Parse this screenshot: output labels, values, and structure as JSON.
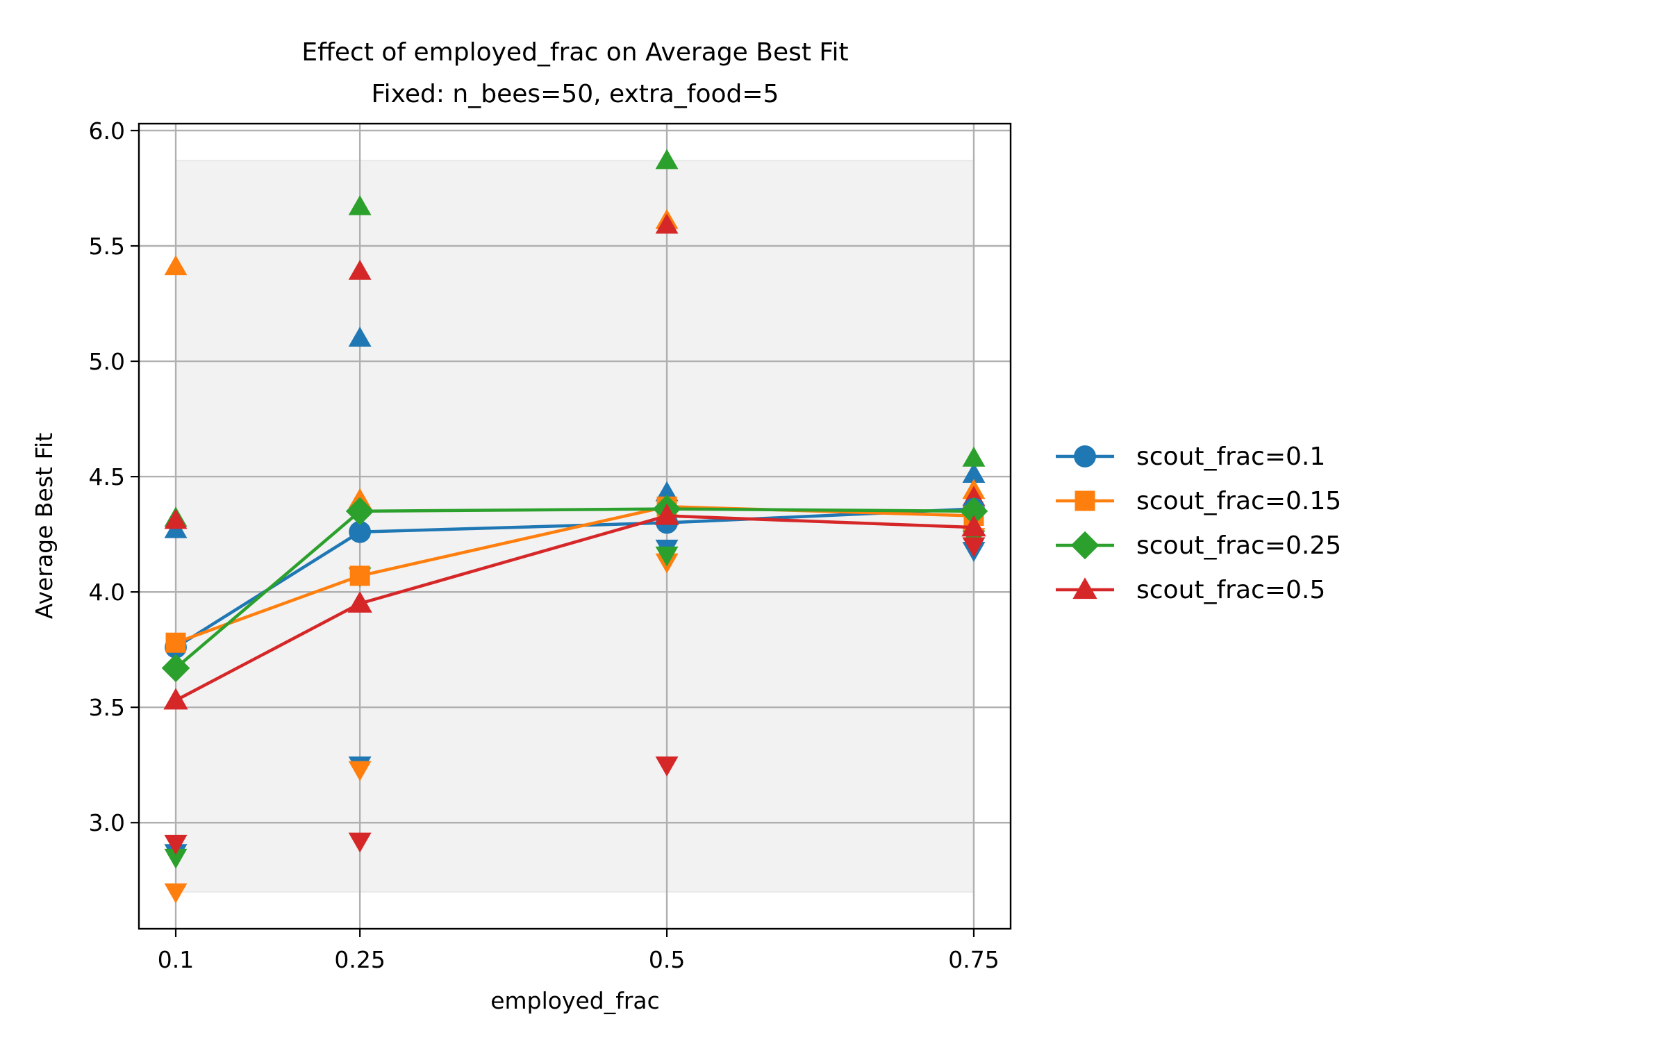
{
  "chart_data": {
    "type": "line",
    "title": "Effect of employed_frac on Average Best Fit",
    "subtitle": "Fixed: n_bees=50, extra_food=5",
    "xlabel": "employed_frac",
    "ylabel": "Average Best Fit",
    "categories": [
      "0.1",
      "0.25",
      "0.5",
      "0.75"
    ],
    "x": [
      0.1,
      0.25,
      0.5,
      0.75
    ],
    "xlim": [
      0.07,
      0.78
    ],
    "ylim": [
      2.54,
      6.03
    ],
    "yticks": [
      "3.0",
      "3.5",
      "4.0",
      "4.5",
      "5.0",
      "5.5",
      "6.0"
    ],
    "ytick_values": [
      3.0,
      3.5,
      4.0,
      4.5,
      5.0,
      5.5,
      6.0
    ],
    "grid": true,
    "legend_position": "right-outside",
    "overall_band": {
      "min": 2.7,
      "max": 5.87
    },
    "series": [
      {
        "name": "scout_frac=0.1",
        "color": "#1f77b4",
        "marker": "circle",
        "values": [
          3.76,
          4.26,
          4.3,
          4.36
        ],
        "max_values": [
          4.27,
          5.1,
          4.43,
          4.51
        ],
        "min_values": [
          2.87,
          3.25,
          4.19,
          4.18
        ]
      },
      {
        "name": "scout_frac=0.15",
        "color": "#ff7f0e",
        "marker": "square",
        "values": [
          3.78,
          4.07,
          4.37,
          4.33
        ],
        "max_values": [
          5.41,
          4.4,
          5.61,
          4.44
        ],
        "min_values": [
          2.7,
          3.23,
          4.13,
          4.24
        ]
      },
      {
        "name": "scout_frac=0.25",
        "color": "#2ca02c",
        "marker": "diamond",
        "values": [
          3.67,
          4.35,
          4.36,
          4.35
        ],
        "max_values": [
          4.32,
          5.67,
          5.87,
          4.58
        ],
        "min_values": [
          2.85,
          4.07,
          4.16,
          4.23
        ]
      },
      {
        "name": "scout_frac=0.5",
        "color": "#d62728",
        "marker": "triangle",
        "values": [
          3.53,
          3.95,
          4.33,
          4.28
        ],
        "max_values": [
          4.31,
          5.39,
          5.59,
          4.41
        ],
        "min_values": [
          2.91,
          2.92,
          3.25,
          4.2
        ]
      }
    ]
  }
}
